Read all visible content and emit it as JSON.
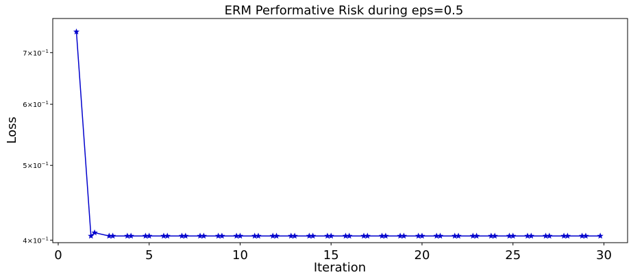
{
  "chart_data": {
    "type": "line",
    "title": "ERM Performative Risk during eps=0.5",
    "xlabel": "Iteration",
    "ylabel": "Loss",
    "xlim": [
      -0.3,
      31.3
    ],
    "ylim": [
      0.397,
      0.775
    ],
    "yscale": "log",
    "grid": false,
    "xticks": [
      0,
      5,
      10,
      15,
      20,
      25,
      30
    ],
    "yticks": [
      {
        "value": 0.4,
        "base": "4",
        "exp": "−1"
      },
      {
        "value": 0.5,
        "base": "5",
        "exp": "−1"
      },
      {
        "value": 0.6,
        "base": "6",
        "exp": "−1"
      },
      {
        "value": 0.7,
        "base": "7",
        "exp": "−1"
      }
    ],
    "series": [
      {
        "color": "#0000cc",
        "marker": "star",
        "x": [
          1.0,
          1.8,
          2.0,
          2.8,
          3.0,
          3.8,
          4.0,
          4.8,
          5.0,
          5.8,
          6.0,
          6.8,
          7.0,
          7.8,
          8.0,
          8.8,
          9.0,
          9.8,
          10.0,
          10.8,
          11.0,
          11.8,
          12.0,
          12.8,
          13.0,
          13.8,
          14.0,
          14.8,
          15.0,
          15.8,
          16.0,
          16.8,
          17.0,
          17.8,
          18.0,
          18.8,
          19.0,
          19.8,
          20.0,
          20.8,
          21.0,
          21.8,
          22.0,
          22.8,
          23.0,
          23.8,
          24.0,
          24.8,
          25.0,
          25.8,
          26.0,
          26.8,
          27.0,
          27.8,
          28.0,
          28.8,
          29.0,
          29.8
        ],
        "y": [
          0.745,
          0.405,
          0.409,
          0.405,
          0.405,
          0.405,
          0.405,
          0.405,
          0.405,
          0.405,
          0.405,
          0.405,
          0.405,
          0.405,
          0.405,
          0.405,
          0.405,
          0.405,
          0.405,
          0.405,
          0.405,
          0.405,
          0.405,
          0.405,
          0.405,
          0.405,
          0.405,
          0.405,
          0.405,
          0.405,
          0.405,
          0.405,
          0.405,
          0.405,
          0.405,
          0.405,
          0.405,
          0.405,
          0.405,
          0.405,
          0.405,
          0.405,
          0.405,
          0.405,
          0.405,
          0.405,
          0.405,
          0.405,
          0.405,
          0.405,
          0.405,
          0.405,
          0.405,
          0.405,
          0.405,
          0.405,
          0.405,
          0.405
        ]
      }
    ]
  }
}
